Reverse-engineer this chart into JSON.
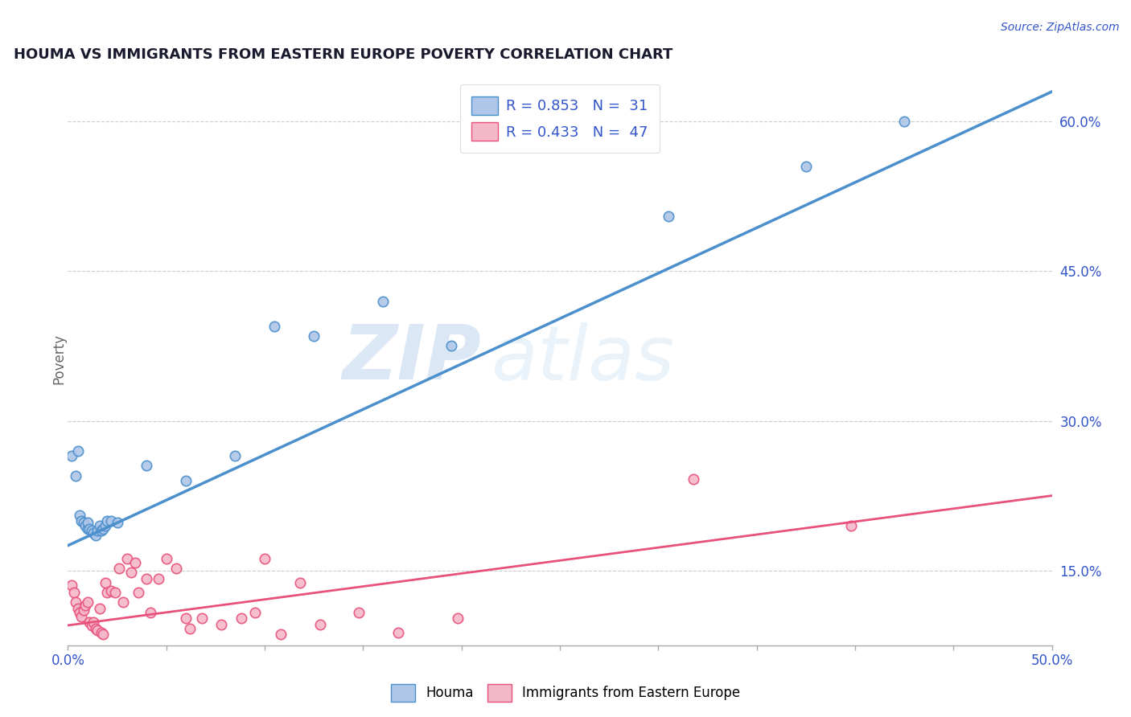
{
  "title": "HOUMA VS IMMIGRANTS FROM EASTERN EUROPE POVERTY CORRELATION CHART",
  "source_text": "Source: ZipAtlas.com",
  "ylabel": "Poverty",
  "xlim": [
    0.0,
    0.5
  ],
  "ylim": [
    0.075,
    0.65
  ],
  "yticks_right": [
    0.15,
    0.3,
    0.45,
    0.6
  ],
  "ytick_labels_right": [
    "15.0%",
    "30.0%",
    "45.0%",
    "60.0%"
  ],
  "houma_R": 0.853,
  "houma_N": 31,
  "immigrants_R": 0.433,
  "immigrants_N": 47,
  "houma_color": "#aec6e8",
  "immigrants_color": "#f5b8cb",
  "houma_line_color": "#4b8fcc",
  "immigrants_line_color": "#e8517a",
  "legend_text_color": "#3355cc",
  "watermark_zip": "ZIP",
  "watermark_atlas": "atlas",
  "houma_scatter": [
    [
      0.002,
      0.265
    ],
    [
      0.004,
      0.245
    ],
    [
      0.005,
      0.27
    ],
    [
      0.006,
      0.205
    ],
    [
      0.007,
      0.2
    ],
    [
      0.008,
      0.198
    ],
    [
      0.009,
      0.195
    ],
    [
      0.01,
      0.192
    ],
    [
      0.01,
      0.198
    ],
    [
      0.011,
      0.192
    ],
    [
      0.012,
      0.19
    ],
    [
      0.013,
      0.188
    ],
    [
      0.014,
      0.185
    ],
    [
      0.015,
      0.19
    ],
    [
      0.016,
      0.195
    ],
    [
      0.017,
      0.19
    ],
    [
      0.018,
      0.192
    ],
    [
      0.019,
      0.195
    ],
    [
      0.02,
      0.2
    ],
    [
      0.022,
      0.2
    ],
    [
      0.025,
      0.198
    ],
    [
      0.04,
      0.255
    ],
    [
      0.06,
      0.24
    ],
    [
      0.085,
      0.265
    ],
    [
      0.105,
      0.395
    ],
    [
      0.125,
      0.385
    ],
    [
      0.16,
      0.42
    ],
    [
      0.195,
      0.375
    ],
    [
      0.305,
      0.505
    ],
    [
      0.375,
      0.555
    ],
    [
      0.425,
      0.6
    ]
  ],
  "immigrants_scatter": [
    [
      0.002,
      0.135
    ],
    [
      0.003,
      0.128
    ],
    [
      0.004,
      0.118
    ],
    [
      0.005,
      0.112
    ],
    [
      0.006,
      0.108
    ],
    [
      0.007,
      0.104
    ],
    [
      0.008,
      0.11
    ],
    [
      0.009,
      0.115
    ],
    [
      0.01,
      0.118
    ],
    [
      0.011,
      0.098
    ],
    [
      0.012,
      0.095
    ],
    [
      0.013,
      0.098
    ],
    [
      0.014,
      0.092
    ],
    [
      0.015,
      0.09
    ],
    [
      0.016,
      0.112
    ],
    [
      0.017,
      0.088
    ],
    [
      0.018,
      0.086
    ],
    [
      0.019,
      0.138
    ],
    [
      0.02,
      0.128
    ],
    [
      0.022,
      0.13
    ],
    [
      0.024,
      0.128
    ],
    [
      0.026,
      0.152
    ],
    [
      0.028,
      0.118
    ],
    [
      0.03,
      0.162
    ],
    [
      0.032,
      0.148
    ],
    [
      0.034,
      0.158
    ],
    [
      0.036,
      0.128
    ],
    [
      0.04,
      0.142
    ],
    [
      0.042,
      0.108
    ],
    [
      0.046,
      0.142
    ],
    [
      0.05,
      0.162
    ],
    [
      0.055,
      0.152
    ],
    [
      0.06,
      0.102
    ],
    [
      0.062,
      0.092
    ],
    [
      0.068,
      0.102
    ],
    [
      0.078,
      0.096
    ],
    [
      0.088,
      0.102
    ],
    [
      0.095,
      0.108
    ],
    [
      0.1,
      0.162
    ],
    [
      0.108,
      0.086
    ],
    [
      0.118,
      0.138
    ],
    [
      0.128,
      0.096
    ],
    [
      0.148,
      0.108
    ],
    [
      0.168,
      0.088
    ],
    [
      0.198,
      0.102
    ],
    [
      0.318,
      0.242
    ],
    [
      0.398,
      0.195
    ]
  ],
  "background_color": "#ffffff",
  "grid_color": "#cccccc",
  "title_color": "#1a1a2e",
  "axis_color": "#3355cc"
}
